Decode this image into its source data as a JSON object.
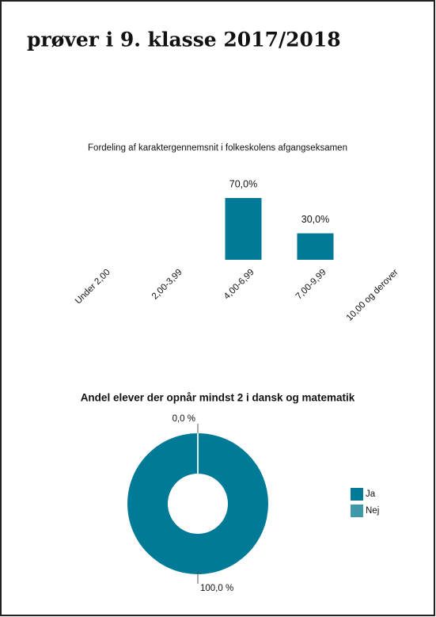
{
  "header": {
    "title": "prøver i 9. klasse 2017/2018"
  },
  "chart_data": [
    {
      "type": "bar",
      "title": "Fordeling af karaktergennemsnit i folkeskolens afgangseksamen",
      "categories": [
        "Under 2,00",
        "2,00-3,99",
        "4,00-6,99",
        "7,00-9,99",
        "10,00 og derover"
      ],
      "values": [
        0,
        0,
        70,
        30,
        0
      ],
      "value_labels": [
        null,
        null,
        "70,0%",
        "30,0%",
        null
      ],
      "color": "#007a96"
    },
    {
      "type": "pie",
      "title": "Andel elever der opnår mindst 2 i dansk og matematik",
      "categories": [
        "Ja",
        "Nej"
      ],
      "values": [
        100,
        0
      ],
      "value_labels": [
        "100,0 %",
        "0,0 %"
      ],
      "colors": [
        "#007a96",
        "#3f97a9"
      ],
      "donut": true,
      "legend": "right"
    }
  ]
}
